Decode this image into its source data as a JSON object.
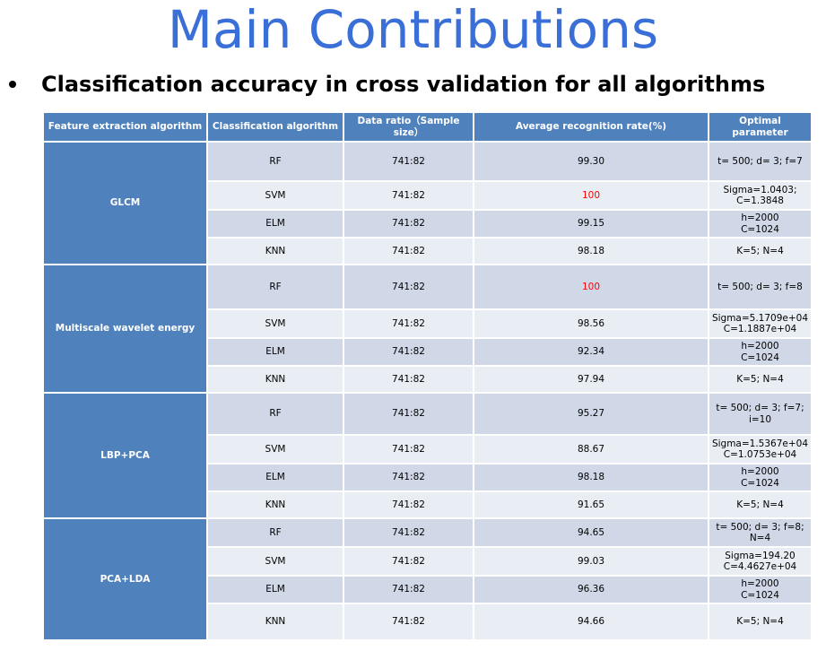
{
  "slide": {
    "title": "Main Contributions",
    "bullet": "Classification accuracy in cross validation for all algorithms"
  },
  "table": {
    "headers": [
      "Feature extraction algorithm",
      "Classification algorithm",
      "Data ratio（Sample size）",
      "Average recognition rate(%)",
      "Optimal parameter"
    ],
    "highlight_color": "#ff0000",
    "groups": [
      {
        "feature": "GLCM",
        "rows": [
          {
            "algo": "RF",
            "ratio": "741:82",
            "rate": "99.30",
            "param": [
              "t= 500; d= 3; f=7"
            ]
          },
          {
            "algo": "SVM",
            "ratio": "741:82",
            "rate": "100",
            "highlight": true,
            "param": [
              "Sigma=1.0403;",
              "C=1.3848"
            ]
          },
          {
            "algo": "ELM",
            "ratio": "741:82",
            "rate": "99.15",
            "param": [
              "h=2000",
              "C=1024"
            ]
          },
          {
            "algo": "KNN",
            "ratio": "741:82",
            "rate": "98.18",
            "param": [
              "K=5; N=4"
            ]
          }
        ]
      },
      {
        "feature": "Multiscale wavelet energy",
        "rows": [
          {
            "algo": "RF",
            "ratio": "741:82",
            "rate": "100",
            "highlight": true,
            "param": [
              "t= 500; d= 3; f=8"
            ]
          },
          {
            "algo": "SVM",
            "ratio": "741:82",
            "rate": "98.56",
            "param": [
              "Sigma=5.1709e+04",
              "C=1.1887e+04"
            ]
          },
          {
            "algo": "ELM",
            "ratio": "741:82",
            "rate": "92.34",
            "param": [
              "h=2000",
              "C=1024"
            ]
          },
          {
            "algo": "KNN",
            "ratio": "741:82",
            "rate": "97.94",
            "param": [
              "K=5; N=4"
            ]
          }
        ]
      },
      {
        "feature": "LBP+PCA",
        "rows": [
          {
            "algo": "RF",
            "ratio": "741:82",
            "rate": "95.27",
            "param": [
              "t= 500; d= 3; f=7;",
              "i=10"
            ]
          },
          {
            "algo": "SVM",
            "ratio": "741:82",
            "rate": "88.67",
            "param": [
              "Sigma=1.5367e+04",
              "C=1.0753e+04"
            ]
          },
          {
            "algo": "ELM",
            "ratio": "741:82",
            "rate": "98.18",
            "param": [
              "h=2000",
              "C=1024"
            ]
          },
          {
            "algo": "KNN",
            "ratio": "741:82",
            "rate": "91.65",
            "param": [
              "K=5; N=4"
            ]
          }
        ]
      },
      {
        "feature": "PCA+LDA",
        "rows": [
          {
            "algo": "RF",
            "ratio": "741:82",
            "rate": "94.65",
            "param": [
              "t= 500; d= 3; f=8;",
              "N=4"
            ]
          },
          {
            "algo": "SVM",
            "ratio": "741:82",
            "rate": "99.03",
            "param": [
              "Sigma=194.20",
              "C=4.4627e+04"
            ]
          },
          {
            "algo": "ELM",
            "ratio": "741:82",
            "rate": "96.36",
            "param": [
              "h=2000",
              "C=1024"
            ]
          },
          {
            "algo": "KNN",
            "ratio": "741:82",
            "rate": "94.66",
            "param": [
              "K=5; N=4"
            ]
          }
        ]
      }
    ]
  }
}
